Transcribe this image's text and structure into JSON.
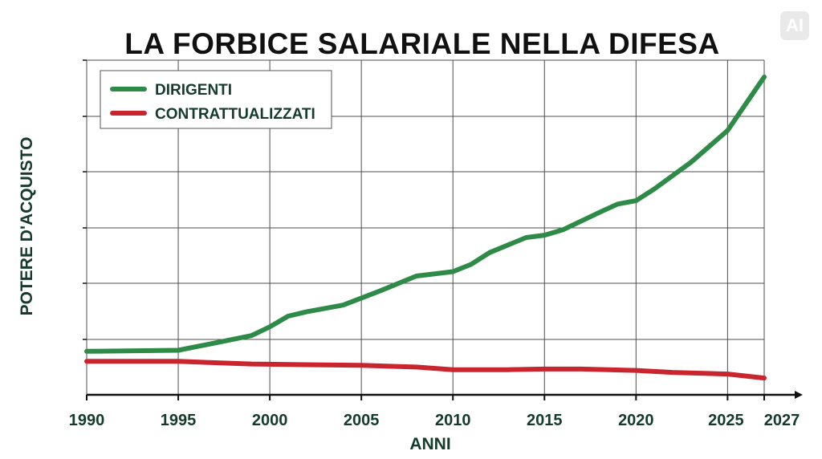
{
  "header": {
    "title": "LA FORBICE SALARIALE NELLA DIFESA",
    "badge": "AI"
  },
  "chart_data": {
    "type": "line",
    "title": "LA FORBICE SALARIALE NELLA DIFESA",
    "xlabel": "ANNI",
    "ylabel": "POTERE D'ACQUISTO",
    "x_ticks": [
      1990,
      1995,
      2000,
      2005,
      2010,
      2015,
      2020,
      2025,
      2027
    ],
    "xlim": [
      1990,
      2027
    ],
    "ylim": [
      0,
      100
    ],
    "grid": true,
    "legend_position": "top-left",
    "series": [
      {
        "name": "DIRIGENTI",
        "color": "#2e8b47",
        "x": [
          1990,
          1995,
          1997,
          1999,
          2000,
          2001,
          2002,
          2004,
          2006,
          2008,
          2010,
          2011,
          2012,
          2014,
          2015,
          2016,
          2018,
          2019,
          2020,
          2021,
          2023,
          2025,
          2027
        ],
        "y": [
          13,
          13.3,
          15.5,
          17.7,
          20.3,
          23.5,
          24.8,
          26.8,
          31,
          35.5,
          36.8,
          39,
          42.5,
          47,
          47.7,
          49.3,
          54.5,
          57,
          58,
          61.5,
          69.5,
          79,
          95
        ]
      },
      {
        "name": "CONTRATTUALIZZATI",
        "color": "#c9252f",
        "x": [
          1990,
          1995,
          1999,
          2002,
          2005,
          2008,
          2010,
          2013,
          2015,
          2017,
          2020,
          2022,
          2025,
          2027
        ],
        "y": [
          10,
          10,
          9.2,
          9,
          8.8,
          8.3,
          7.5,
          7.5,
          7.7,
          7.7,
          7.3,
          6.7,
          6.2,
          5
        ]
      }
    ]
  }
}
